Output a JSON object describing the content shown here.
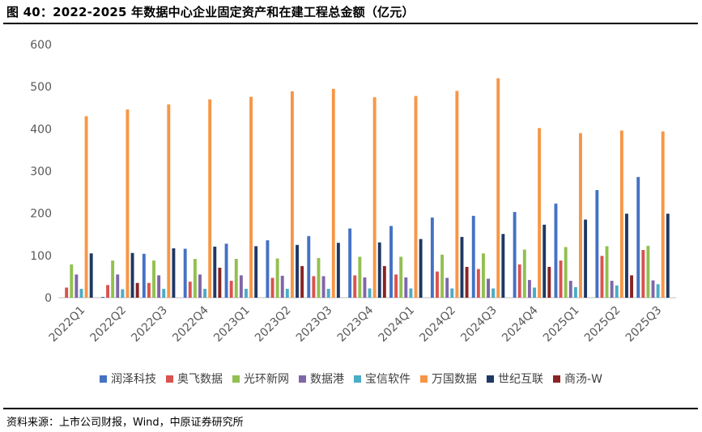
{
  "title": "图 40：2022-2025 年数据中心企业固定资产和在建工程总金额（亿元）",
  "source": "资料来源：上市公司财报，Wind，中原证券研究所",
  "chart_data": {
    "type": "bar",
    "title": "图 40：2022-2025 年数据中心企业固定资产和在建工程总金额（亿元）",
    "ylim": [
      0,
      600
    ],
    "yticks": [
      0,
      100,
      200,
      300,
      400,
      500,
      600
    ],
    "grid": false,
    "legend_position": "bottom",
    "categories": [
      "2022Q1",
      "2022Q2",
      "2022Q3",
      "2022Q4",
      "2023Q1",
      "2023Q2",
      "2023Q3",
      "2023Q4",
      "2024Q1",
      "2024Q2",
      "2024Q3",
      "2024Q4",
      "2025Q1",
      "2025Q2",
      "2025Q3"
    ],
    "series": [
      {
        "name": "润泽科技",
        "color": "#4472C4",
        "values": [
          0,
          2,
          104,
          116,
          128,
          136,
          146,
          164,
          170,
          190,
          194,
          203,
          223,
          255,
          286
        ]
      },
      {
        "name": "奥飞数据",
        "color": "#D9534F",
        "values": [
          24,
          30,
          35,
          38,
          40,
          47,
          51,
          53,
          55,
          62,
          68,
          79,
          88,
          99,
          113
        ]
      },
      {
        "name": "光环新网",
        "color": "#92C050",
        "values": [
          79,
          88,
          88,
          92,
          92,
          93,
          94,
          97,
          97,
          102,
          105,
          114,
          120,
          122,
          123
        ]
      },
      {
        "name": "数据港",
        "color": "#7F66A8",
        "values": [
          55,
          55,
          53,
          55,
          53,
          52,
          51,
          48,
          48,
          47,
          45,
          42,
          40,
          40,
          41
        ]
      },
      {
        "name": "宝信软件",
        "color": "#4BACC6",
        "values": [
          21,
          20,
          21,
          21,
          21,
          21,
          21,
          22,
          22,
          22,
          22,
          24,
          25,
          29,
          32
        ]
      },
      {
        "name": "万国数据",
        "color": "#F79646",
        "values": [
          430,
          446,
          458,
          470,
          476,
          489,
          495,
          475,
          478,
          490,
          520,
          402,
          390,
          396,
          394
        ]
      },
      {
        "name": "世纪互联",
        "color": "#1F3864",
        "values": [
          105,
          106,
          117,
          121,
          122,
          125,
          130,
          131,
          139,
          144,
          151,
          173,
          185,
          199,
          199
        ]
      },
      {
        "name": "商汤-W",
        "color": "#8B2323",
        "values": [
          0,
          35,
          0,
          71,
          0,
          75,
          0,
          75,
          0,
          73,
          0,
          73,
          0,
          53,
          0
        ]
      }
    ]
  }
}
